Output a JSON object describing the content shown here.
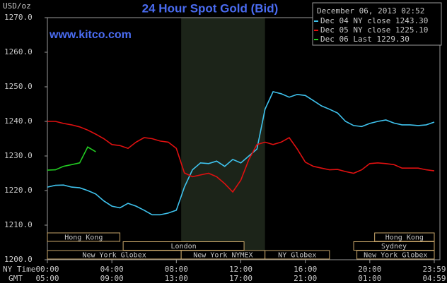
{
  "chart_data": {
    "type": "line",
    "title": "24 Hour Spot Gold (Bid)",
    "site": "www.kitco.com",
    "y_label": "USD/oz",
    "timestamp": "December 06, 2013 02:52",
    "x_row_labels": [
      "NY Time",
      "GMT"
    ],
    "x": [
      0,
      0.5,
      1,
      1.5,
      2,
      2.5,
      3,
      3.5,
      4,
      4.5,
      5,
      5.5,
      6,
      6.5,
      7,
      7.5,
      8,
      8.5,
      9,
      9.5,
      10,
      10.5,
      11,
      11.5,
      12,
      12.5,
      13,
      13.5,
      14,
      14.5,
      15,
      15.5,
      16,
      16.5,
      17,
      17.5,
      18,
      18.5,
      19,
      19.5,
      20,
      20.5,
      21,
      21.5,
      22,
      22.5,
      23,
      23.5,
      24
    ],
    "series": [
      {
        "name": "Dec 04 NY close 1243.30",
        "color": "#3fc3ee",
        "values": [
          1221,
          1221.5,
          1221.6,
          1221,
          1220.8,
          1220,
          1219,
          1217,
          1215.5,
          1215,
          1216.3,
          1215.5,
          1214.3,
          1213,
          1213,
          1213.5,
          1214.3,
          1221,
          1226,
          1228,
          1227.8,
          1228.5,
          1227,
          1229,
          1228,
          1230,
          1232,
          1243.5,
          1248.6,
          1248,
          1247,
          1247.8,
          1247.5,
          1246,
          1244.5,
          1243.5,
          1242.4,
          1240,
          1238.8,
          1238.5,
          1239.4,
          1240,
          1240.4,
          1239.5,
          1239,
          1239,
          1238.8,
          1239,
          1239.8
        ]
      },
      {
        "name": "Dec 05 NY close 1225.10",
        "color": "#e01010",
        "values": [
          1240,
          1240,
          1239.4,
          1239,
          1238.4,
          1237.5,
          1236.3,
          1235,
          1233.3,
          1233,
          1232.2,
          1234,
          1235.3,
          1235,
          1234.3,
          1234,
          1232.2,
          1225.1,
          1224,
          1224.5,
          1225,
          1224,
          1222,
          1219.6,
          1223,
          1229,
          1233.3,
          1234,
          1233.3,
          1234,
          1235.3,
          1232,
          1228.2,
          1227,
          1226.5,
          1226,
          1226.1,
          1225.5,
          1225,
          1226,
          1227.8,
          1228,
          1227.8,
          1227.5,
          1226.5,
          1226.5,
          1226.5,
          1226,
          1225.7
        ]
      },
      {
        "name": "Dec 06 Last 1229.30",
        "color": "#22cc22",
        "values": [
          1225.9,
          1226,
          1227,
          1227.5,
          1228,
          1232.6,
          1231.2,
          null,
          null,
          null,
          null,
          null,
          null,
          null,
          null,
          null,
          null,
          null,
          null,
          null,
          null,
          null,
          null,
          null,
          null,
          null,
          null,
          null,
          null,
          null,
          null,
          null,
          null,
          null,
          null,
          null,
          null,
          null,
          null,
          null,
          null,
          null,
          null,
          null,
          null,
          null,
          null,
          null,
          null
        ]
      }
    ],
    "xlim": [
      0,
      24
    ],
    "xticks": [
      {
        "value": 0,
        "label": "00:00"
      },
      {
        "value": 4,
        "label": "04:00"
      },
      {
        "value": 8,
        "label": "08:00"
      },
      {
        "value": 12,
        "label": "12:00"
      },
      {
        "value": 16,
        "label": "16:00"
      },
      {
        "value": 20,
        "label": "20:00"
      },
      {
        "value": 24,
        "label": "23:59"
      }
    ],
    "xticks_gmt": [
      {
        "value": 0,
        "label": "05:00"
      },
      {
        "value": 4,
        "label": "09:00"
      },
      {
        "value": 8,
        "label": "13:00"
      },
      {
        "value": 12,
        "label": "17:00"
      },
      {
        "value": 16,
        "label": "21:00"
      },
      {
        "value": 20,
        "label": "01:00"
      },
      {
        "value": 24,
        "label": "04:59"
      }
    ],
    "ylim": [
      1200,
      1270
    ],
    "yticks": [
      {
        "value": 1200,
        "label": "1200.0"
      },
      {
        "value": 1210,
        "label": "1210.0"
      },
      {
        "value": 1220,
        "label": "1220.0"
      },
      {
        "value": 1230,
        "label": "1230.0"
      },
      {
        "value": 1240,
        "label": "1240.0"
      },
      {
        "value": 1250,
        "label": "1250.0"
      },
      {
        "value": 1260,
        "label": "1260.0"
      },
      {
        "value": 1270,
        "label": "1270.0"
      }
    ],
    "shade": [
      8.3,
      13.5
    ],
    "sessions": [
      [
        {
          "label": "Hong Kong",
          "start": 0,
          "end": 4.5
        },
        {
          "label": "Hong Kong",
          "start": 20.3,
          "end": 24
        }
      ],
      [
        {
          "label": "London",
          "start": 4.7,
          "end": 12.2
        },
        {
          "label": "Sydney",
          "start": 19,
          "end": 24
        }
      ],
      [
        {
          "label": "New York Globex",
          "start": 0,
          "end": 8.3
        },
        {
          "label": "New York NYMEX",
          "start": 8.3,
          "end": 13.5
        },
        {
          "label": "NY Globex",
          "start": 13.5,
          "end": 17.5
        },
        {
          "label": "New York Globex",
          "start": 19.2,
          "end": 24
        }
      ]
    ],
    "legend": "top-right"
  }
}
